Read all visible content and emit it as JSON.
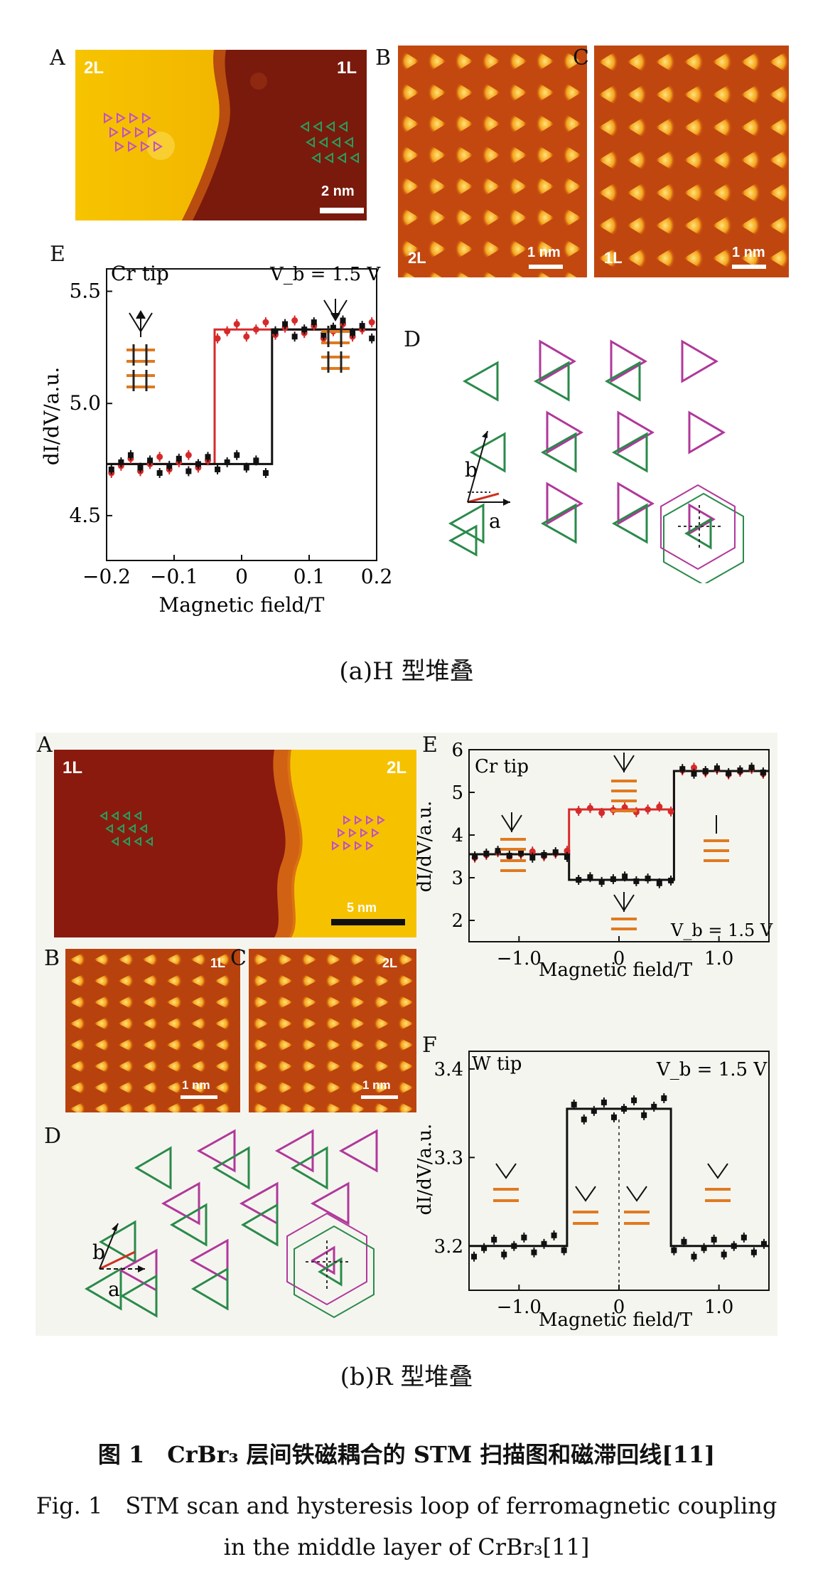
{
  "part_a": {
    "caption": "(a)H 型堆叠",
    "panel_A": {
      "letter": "A",
      "left_label": "2L",
      "right_label": "1L",
      "scale": "2 nm"
    },
    "panel_B": {
      "letter": "B",
      "label": "2L",
      "scale": "1 nm"
    },
    "panel_C": {
      "letter": "C",
      "label": "1L",
      "scale": "1 nm"
    },
    "panel_D": {
      "letter": "D",
      "vec_a": "a",
      "vec_b": "b"
    },
    "panel_E": {
      "letter": "E",
      "tip": "Cr tip",
      "bias": "V_b = 1.5 V",
      "ylabel": "dI/dV/a.u.",
      "xlabel": "Magnetic field/T",
      "yticks": [
        "5.5",
        "5.0",
        "4.5"
      ],
      "xticks": [
        "−0.2",
        "−0.1",
        "0",
        "0.1",
        "0.2"
      ]
    }
  },
  "part_b": {
    "caption": "(b)R 型堆叠",
    "panel_A": {
      "letter": "A",
      "left_label": "1L",
      "right_label": "2L",
      "scale": "5 nm"
    },
    "panel_B": {
      "letter": "B",
      "label": "1L",
      "scale": "1 nm"
    },
    "panel_C": {
      "letter": "C",
      "label": "2L",
      "scale": "1 nm"
    },
    "panel_D": {
      "letter": "D",
      "vec_a": "a",
      "vec_b": "b"
    },
    "panel_E": {
      "letter": "E",
      "tip": "Cr tip",
      "bias": "V_b = 1.5 V",
      "ylabel": "dI/dV/a.u.",
      "xlabel": "Magnetic field/T",
      "yticks": [
        "6",
        "5",
        "4",
        "3",
        "2"
      ],
      "xticks": [
        "−1.0",
        "0",
        "1.0"
      ]
    },
    "panel_F": {
      "letter": "F",
      "tip": "W tip",
      "bias": "V_b = 1.5 V",
      "ylabel": "dI/dV/a.u.",
      "xlabel": "Magnetic field/T",
      "yticks": [
        "3.4",
        "3.3",
        "3.2"
      ],
      "xticks": [
        "−1.0",
        "0",
        "1.0"
      ]
    }
  },
  "figure_caption_cn": "图 1　CrBr₃ 层间铁磁耦合的 STM 扫描图和磁滞回线[11]",
  "figure_caption_en_1": "Fig. 1　STM scan and hysteresis loop of ferromagnetic coupling",
  "figure_caption_en_2": "in the middle layer of CrBr₃[11]",
  "chart_data": [
    {
      "type": "line",
      "title": "",
      "xlabel": "Magnetic field/T",
      "ylabel": "dI/dV/a.u.",
      "xlim": [
        -0.2,
        0.2
      ],
      "ylim": [
        4.3,
        5.6
      ],
      "series": [
        {
          "color": "#d62a2a",
          "x": [
            -0.2,
            -0.04,
            -0.04,
            0.2
          ],
          "y": [
            4.73,
            4.73,
            5.33,
            5.33
          ]
        },
        {
          "color": "#111111",
          "x": [
            -0.2,
            0.045,
            0.045,
            0.2
          ],
          "y": [
            4.73,
            4.73,
            5.33,
            5.33
          ]
        }
      ]
    },
    {
      "type": "line",
      "title": "",
      "xlabel": "Magnetic field/T",
      "ylabel": "dI/dV/a.u.",
      "xlim": [
        -1.5,
        1.5
      ],
      "ylim": [
        1.5,
        6
      ],
      "series": [
        {
          "color": "#d62a2a",
          "x": [
            -1.5,
            -0.5,
            -0.5,
            0.55,
            0.55,
            1.5
          ],
          "y": [
            3.55,
            3.55,
            4.6,
            4.6,
            5.5,
            5.5
          ]
        },
        {
          "color": "#111111",
          "x": [
            -1.5,
            -0.5,
            -0.5,
            0.55,
            0.55,
            1.5
          ],
          "y": [
            3.55,
            3.55,
            2.95,
            2.95,
            5.5,
            5.5
          ]
        }
      ]
    },
    {
      "type": "line",
      "title": "",
      "xlabel": "Magnetic field/T",
      "ylabel": "dI/dV/a.u.",
      "xlim": [
        -1.5,
        1.5
      ],
      "ylim": [
        3.15,
        3.42
      ],
      "series": [
        {
          "color": "#111111",
          "x": [
            -1.5,
            -0.52,
            -0.52,
            0.52,
            0.52,
            1.5
          ],
          "y": [
            3.2,
            3.2,
            3.355,
            3.355,
            3.2,
            3.2
          ]
        }
      ]
    }
  ]
}
